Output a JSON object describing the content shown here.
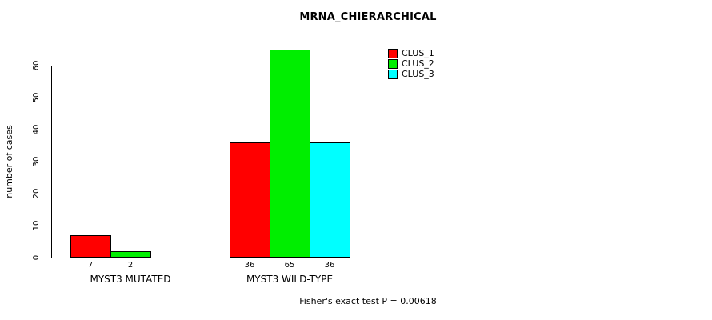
{
  "chart_data": {
    "type": "bar",
    "title": "MRNA_CHIERARCHICAL",
    "ylabel": "number of cases",
    "xlabel": "",
    "categories": [
      "MYST3 MUTATED",
      "MYST3 WILD-TYPE"
    ],
    "series": [
      {
        "name": "CLUS_1",
        "color": "#ff0000",
        "values": [
          7,
          36
        ]
      },
      {
        "name": "CLUS_2",
        "color": "#00ee00",
        "values": [
          2,
          65
        ]
      },
      {
        "name": "CLUS_3",
        "color": "#00ffff",
        "values": [
          0,
          36
        ]
      }
    ],
    "bar_labels": [
      [
        "7",
        "2",
        ""
      ],
      [
        "36",
        "65",
        "36"
      ]
    ],
    "yticks": [
      0,
      10,
      20,
      30,
      40,
      50,
      60
    ],
    "ylim": [
      0,
      65
    ],
    "grid": false,
    "legend_position": "top-right",
    "annotation": "Fisher's exact test P = 0.00618"
  }
}
